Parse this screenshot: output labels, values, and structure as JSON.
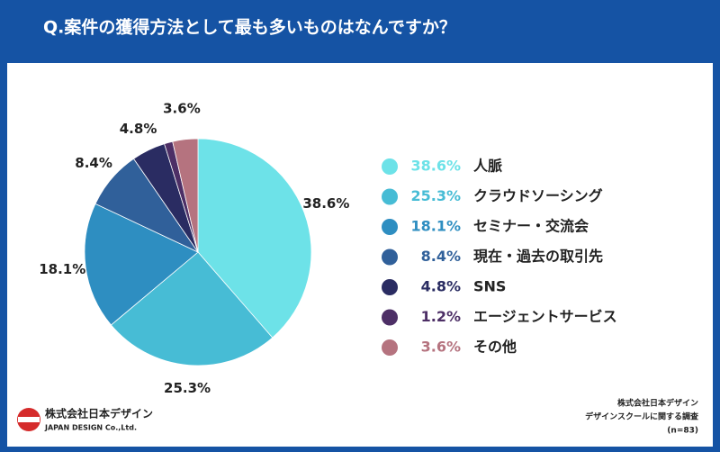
{
  "chart_data": {
    "type": "pie",
    "title": "Q.案件の獲得方法として最も多いものはなんですか？",
    "categories": [
      "人脈",
      "クラウドソーシング",
      "セミナー・交流会",
      "現在・過去の取引先",
      "SNS",
      "エージェントサービス",
      "その他"
    ],
    "values": [
      38.6,
      25.3,
      18.1,
      8.4,
      4.8,
      1.2,
      3.6
    ],
    "value_labels": [
      "38.6%",
      "25.3%",
      "18.1%",
      "8.4%",
      "4.8%",
      "1.2%",
      "3.6%"
    ],
    "colors": [
      "#6de2e8",
      "#47bcd5",
      "#2e8ec1",
      "#30609a",
      "#2a2c62",
      "#4d2f66",
      "#b5737f"
    ],
    "label_hidden": [
      5
    ],
    "legend": "right"
  },
  "footer": {
    "logo_company": "株式会社日本デザイン",
    "logo_english": "JAPAN DESIGN Co.,Ltd.",
    "note": [
      "株式会社日本デザイン",
      "デザインスクールに関する調査",
      "(n=83)"
    ]
  }
}
